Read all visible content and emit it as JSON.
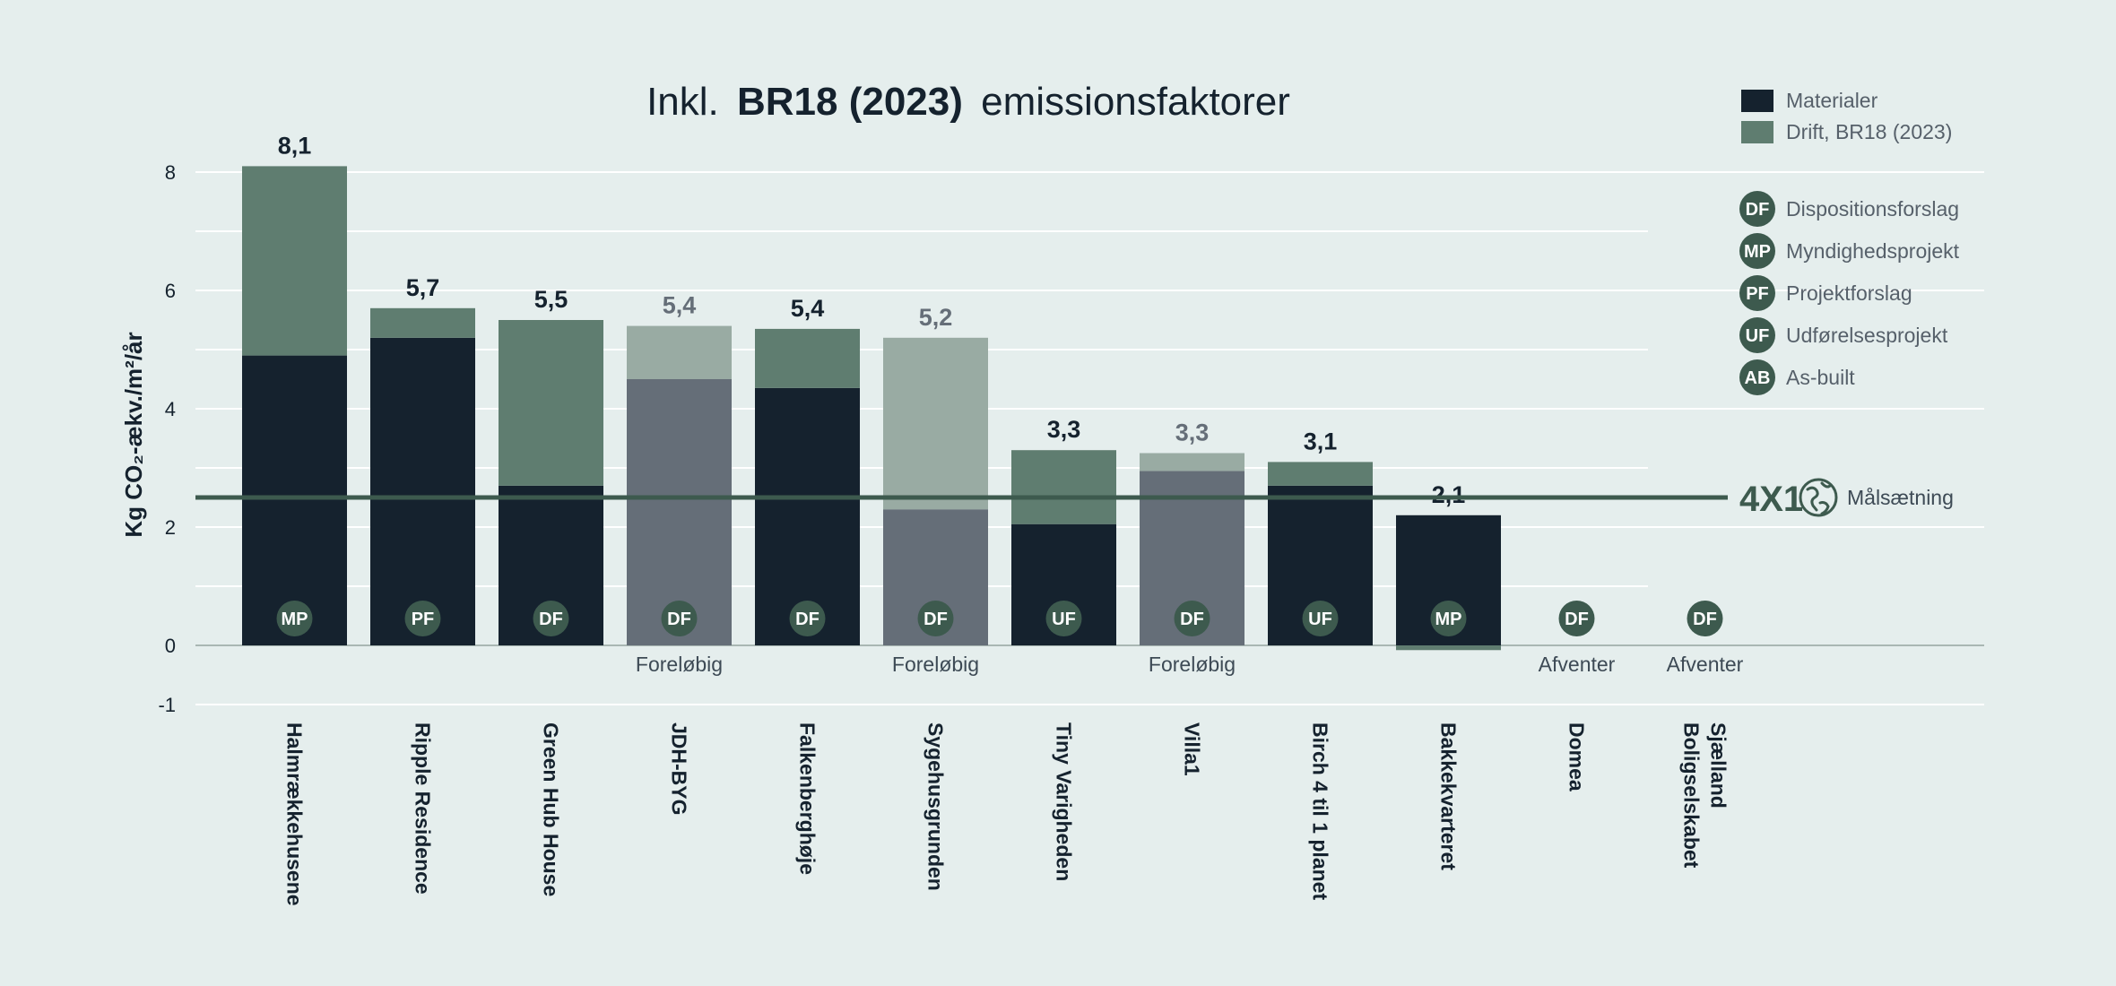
{
  "chart_data": {
    "type": "bar",
    "stacked": true,
    "title": {
      "prefix": "Inkl.",
      "bold": "BR18 (2023)",
      "suffix": "emissionsfaktorer"
    },
    "ylabel": "Kg CO₂-ækv./m²/år",
    "ylim": [
      -1,
      8.5
    ],
    "yticks": [
      -1,
      0,
      2,
      4,
      6,
      8
    ],
    "grid": true,
    "colors": {
      "materials": "#15222e",
      "operation": "#5f7d70",
      "materials_preliminary": "#656e78",
      "operation_preliminary": "#99aba3",
      "badge": "#3d5a4e",
      "target": "#3d5a4e"
    },
    "series": [
      {
        "name": "Materialer",
        "key": "materials"
      },
      {
        "name": "Drift, BR18 (2023)",
        "key": "operation"
      }
    ],
    "categories": [
      {
        "name": "Halmrækkehusene",
        "materials": 4.9,
        "operation": 3.2,
        "total": "8,1",
        "phase": "MP",
        "status": "",
        "preliminary": false
      },
      {
        "name": "Ripple Residence",
        "materials": 5.2,
        "operation": 0.5,
        "total": "5,7",
        "phase": "PF",
        "status": "",
        "preliminary": false
      },
      {
        "name": "Green Hub House",
        "materials": 2.7,
        "operation": 2.8,
        "total": "5,5",
        "phase": "DF",
        "status": "",
        "preliminary": false
      },
      {
        "name": "JDH-BYG",
        "materials": 4.5,
        "operation": 0.9,
        "total": "5,4",
        "phase": "DF",
        "status": "Foreløbig",
        "preliminary": true
      },
      {
        "name": "Falkenberghøje",
        "materials": 4.35,
        "operation": 1.0,
        "total": "5,4",
        "phase": "DF",
        "status": "",
        "preliminary": false
      },
      {
        "name": "Sygehusgrunden",
        "materials": 2.3,
        "operation": 2.9,
        "total": "5,2",
        "phase": "DF",
        "status": "Foreløbig",
        "preliminary": true
      },
      {
        "name": "Tiny Varigheden",
        "materials": 2.05,
        "operation": 1.25,
        "total": "3,3",
        "phase": "UF",
        "status": "",
        "preliminary": false
      },
      {
        "name": "Villa1",
        "materials": 2.95,
        "operation": 0.3,
        "total": "3,3",
        "phase": "DF",
        "status": "Foreløbig",
        "preliminary": true
      },
      {
        "name": "Birch 4 til 1 planet",
        "materials": 2.7,
        "operation": 0.4,
        "total": "3,1",
        "phase": "UF",
        "status": "",
        "preliminary": false
      },
      {
        "name": "Bakkekvarteret",
        "materials": 2.2,
        "operation": -0.08,
        "total": "2,1",
        "phase": "MP",
        "status": "",
        "preliminary": false
      },
      {
        "name": "Domea",
        "materials": 0,
        "operation": 0,
        "total": "",
        "phase": "DF",
        "status": "Afventer",
        "preliminary": false
      },
      {
        "name": "Boligselskabet Sjælland",
        "materials": 0,
        "operation": 0,
        "total": "",
        "phase": "DF",
        "status": "Afventer",
        "preliminary": false
      }
    ],
    "target": {
      "value": 2.5,
      "label": "Målsætning",
      "logo": "4X1",
      "logo_icon": "globe-icon"
    },
    "phase_legend": [
      {
        "code": "DF",
        "label": "Dispositionsforslag"
      },
      {
        "code": "MP",
        "label": "Myndighedsprojekt"
      },
      {
        "code": "PF",
        "label": "Projektforslag"
      },
      {
        "code": "UF",
        "label": "Udførelsesprojekt"
      },
      {
        "code": "AB",
        "label": "As-built"
      }
    ]
  }
}
